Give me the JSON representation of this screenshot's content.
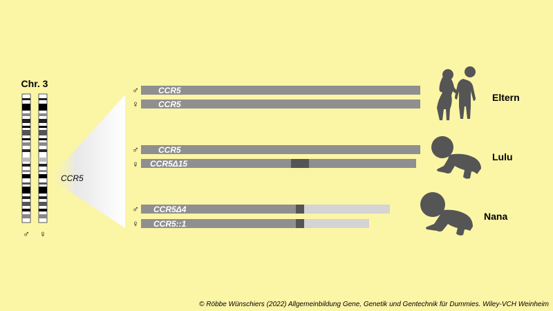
{
  "chromosome": {
    "title": "Chr. 3",
    "left_symbol": "♂",
    "right_symbol": "♀",
    "zoom_label": "CCR5"
  },
  "groups": [
    {
      "name": "Eltern",
      "alleles": [
        {
          "symbol": "♂",
          "label": "CCR5",
          "variant": "normal"
        },
        {
          "symbol": "♀",
          "label": "CCR5",
          "variant": "normal"
        }
      ]
    },
    {
      "name": "Lulu",
      "alleles": [
        {
          "symbol": "♂",
          "label": "CCR5",
          "variant": "normal"
        },
        {
          "symbol": "♀",
          "label": "CCR5Δ15",
          "variant": "deletion15"
        }
      ]
    },
    {
      "name": "Nana",
      "alleles": [
        {
          "symbol": "♂",
          "label": "CCR5Δ4",
          "variant": "truncated4"
        },
        {
          "symbol": "♀",
          "label": "CCR5::1",
          "variant": "truncated1"
        }
      ]
    }
  ],
  "colors": {
    "background": "#fbf5a6",
    "gene_bar": "#8f8f8f",
    "mutation_mark": "#555555",
    "non_functional": "#d4d4d4",
    "silhouette": "#555555"
  },
  "credit": "© Röbbe Wünschiers (2022) Allgemeinbildung Gene, Genetik und Gentechnik für Dummies. Wiley-VCH Weinheim"
}
